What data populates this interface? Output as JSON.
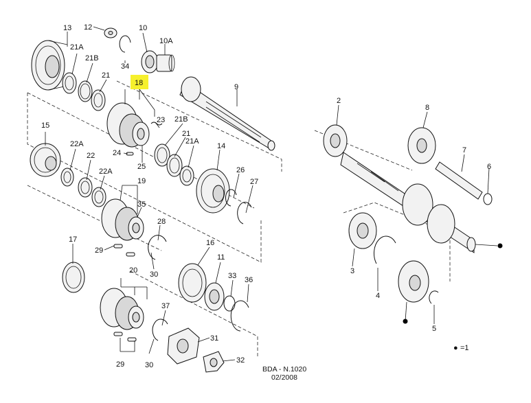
{
  "highlight": {
    "color": "#f6f02c",
    "part": "18"
  },
  "labels": {
    "p13": "13",
    "p12": "12",
    "p10": "10",
    "p10A": "10A",
    "p34": "34",
    "p21A_a": "21A",
    "p21B_a": "21B",
    "p21_a": "21",
    "p18": "18",
    "p9": "9",
    "p23": "23",
    "p24": "24",
    "p25": "25",
    "p15": "15",
    "p22A_a": "22A",
    "p22": "22",
    "p22A_b": "22A",
    "p19": "19",
    "p35": "35",
    "p28": "28",
    "p21B_b": "21B",
    "p21_b": "21",
    "p21A_b": "21A",
    "p14": "14",
    "p26": "26",
    "p27": "27",
    "p17": "17",
    "p29_a": "29",
    "p30_a": "30",
    "p16": "16",
    "p11": "11",
    "p33": "33",
    "p36": "36",
    "p20": "20",
    "p37": "37",
    "p31": "31",
    "p29_b": "29",
    "p30_b": "30",
    "p32": "32",
    "p2": "2",
    "p8": "8",
    "p7": "7",
    "p6": "6",
    "p3": "3",
    "p4": "4",
    "p5": "5"
  },
  "legend": {
    "symbol": "●",
    "text": "=1"
  },
  "footer": {
    "ref": "BDA - N.1020",
    "date": "02/2008"
  }
}
